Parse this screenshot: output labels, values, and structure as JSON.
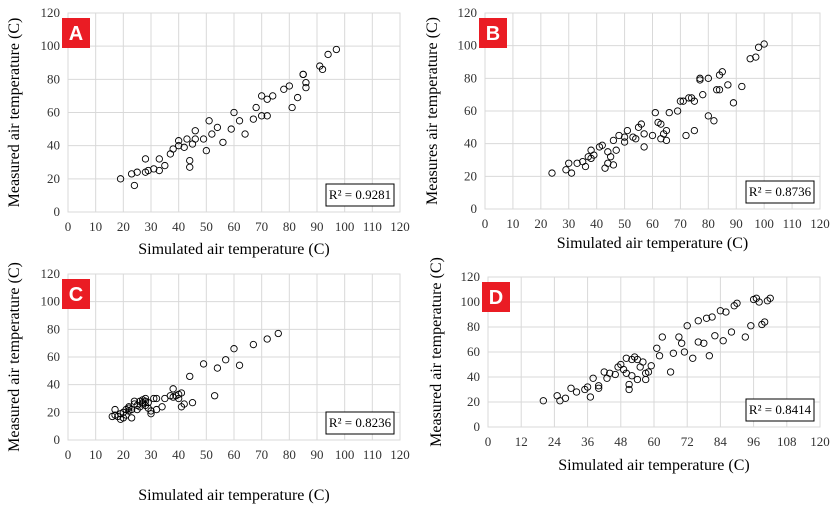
{
  "chart_data": [
    {
      "type": "scatter",
      "panel_label": "A",
      "xlabel": "Simulated air temperature (C)",
      "ylabel": "Measured air temperature (C)",
      "xlim": [
        0,
        120
      ],
      "ylim": [
        0,
        120
      ],
      "xticks": [
        "0",
        "10",
        "20",
        "30",
        "40",
        "50",
        "60",
        "70",
        "80",
        "90",
        "100",
        "110",
        "120"
      ],
      "yticks": [
        "0",
        "20",
        "40",
        "60",
        "80",
        "100",
        "120"
      ],
      "r2": "R² = 0.9281",
      "r2_position": "bottom-right",
      "grid": true,
      "points": [
        [
          19,
          20
        ],
        [
          23,
          23
        ],
        [
          24,
          16
        ],
        [
          25,
          24
        ],
        [
          28,
          24
        ],
        [
          28,
          32
        ],
        [
          29,
          25
        ],
        [
          31,
          26
        ],
        [
          33,
          32
        ],
        [
          33,
          25
        ],
        [
          35,
          28
        ],
        [
          37,
          35
        ],
        [
          38,
          38
        ],
        [
          40,
          40
        ],
        [
          40,
          43
        ],
        [
          42,
          39
        ],
        [
          43,
          44
        ],
        [
          44,
          27
        ],
        [
          44,
          31
        ],
        [
          45,
          41
        ],
        [
          46,
          44
        ],
        [
          46,
          49
        ],
        [
          49,
          44
        ],
        [
          50,
          37
        ],
        [
          51,
          55
        ],
        [
          52,
          47
        ],
        [
          54,
          51
        ],
        [
          56,
          42
        ],
        [
          59,
          50
        ],
        [
          60,
          60
        ],
        [
          62,
          55
        ],
        [
          64,
          47
        ],
        [
          67,
          56
        ],
        [
          68,
          63
        ],
        [
          70,
          58
        ],
        [
          70,
          70
        ],
        [
          72,
          58
        ],
        [
          72,
          68
        ],
        [
          74,
          70
        ],
        [
          78,
          74
        ],
        [
          80,
          76
        ],
        [
          81,
          63
        ],
        [
          83,
          69
        ],
        [
          85,
          83
        ],
        [
          85,
          83
        ],
        [
          86,
          75
        ],
        [
          86,
          78
        ],
        [
          91,
          88
        ],
        [
          92,
          86
        ],
        [
          94,
          95
        ],
        [
          97,
          98
        ]
      ]
    },
    {
      "type": "scatter",
      "panel_label": "B",
      "xlabel": "Simulated air temperature (C)",
      "ylabel": "Measures air temperature (C)",
      "xlim": [
        0,
        120
      ],
      "ylim": [
        0,
        120
      ],
      "xticks": [
        "0",
        "10",
        "20",
        "30",
        "40",
        "50",
        "60",
        "70",
        "80",
        "90",
        "100",
        "110",
        "120"
      ],
      "yticks": [
        "0",
        "20",
        "40",
        "60",
        "80",
        "100",
        "120"
      ],
      "r2": "R² = 0.8736",
      "r2_position": "bottom-right",
      "grid": true,
      "points": [
        [
          24,
          22
        ],
        [
          29,
          24
        ],
        [
          30,
          28
        ],
        [
          31,
          22
        ],
        [
          33,
          28
        ],
        [
          35,
          29
        ],
        [
          36,
          26
        ],
        [
          37,
          32
        ],
        [
          38,
          36
        ],
        [
          38,
          31
        ],
        [
          39,
          33
        ],
        [
          41,
          38
        ],
        [
          42,
          39
        ],
        [
          43,
          25
        ],
        [
          44,
          28
        ],
        [
          44,
          35
        ],
        [
          45,
          32
        ],
        [
          46,
          27
        ],
        [
          46,
          42
        ],
        [
          47,
          36
        ],
        [
          48,
          45
        ],
        [
          50,
          41
        ],
        [
          50,
          44
        ],
        [
          51,
          48
        ],
        [
          53,
          44
        ],
        [
          54,
          43
        ],
        [
          55,
          50
        ],
        [
          56,
          52
        ],
        [
          57,
          46
        ],
        [
          57,
          38
        ],
        [
          60,
          45
        ],
        [
          61,
          59
        ],
        [
          62,
          53
        ],
        [
          63,
          52
        ],
        [
          63,
          43
        ],
        [
          64,
          46
        ],
        [
          65,
          42
        ],
        [
          65,
          48
        ],
        [
          66,
          59
        ],
        [
          69,
          60
        ],
        [
          70,
          66
        ],
        [
          71,
          66
        ],
        [
          72,
          45
        ],
        [
          73,
          68
        ],
        [
          74,
          68
        ],
        [
          75,
          66
        ],
        [
          75,
          48
        ],
        [
          77,
          79
        ],
        [
          77,
          80
        ],
        [
          78,
          70
        ],
        [
          80,
          57
        ],
        [
          80,
          80
        ],
        [
          82,
          54
        ],
        [
          83,
          73
        ],
        [
          84,
          73
        ],
        [
          84,
          82
        ],
        [
          85,
          84
        ],
        [
          87,
          76
        ],
        [
          89,
          65
        ],
        [
          92,
          75
        ],
        [
          95,
          92
        ],
        [
          97,
          93
        ],
        [
          98,
          99
        ],
        [
          100,
          101
        ]
      ]
    },
    {
      "type": "scatter",
      "panel_label": "C",
      "xlabel": "Simulated air temperature (C)",
      "ylabel": "Measured air temperature (C)",
      "xlim": [
        0,
        120
      ],
      "ylim": [
        0,
        120
      ],
      "xticks": [
        "0",
        "10",
        "20",
        "30",
        "40",
        "50",
        "60",
        "70",
        "80",
        "90",
        "100",
        "110",
        "120"
      ],
      "yticks": [
        "0",
        "20",
        "40",
        "60",
        "80",
        "100",
        "120"
      ],
      "r2": "R² = 0.8236",
      "r2_position": "bottom-right",
      "grid": true,
      "points": [
        [
          16,
          17
        ],
        [
          17,
          22
        ],
        [
          17,
          18
        ],
        [
          18,
          17
        ],
        [
          19,
          15
        ],
        [
          19,
          19
        ],
        [
          20,
          20
        ],
        [
          20,
          16
        ],
        [
          21,
          22
        ],
        [
          21,
          18
        ],
        [
          22,
          21
        ],
        [
          22,
          23
        ],
        [
          22,
          24
        ],
        [
          23,
          16
        ],
        [
          23,
          22
        ],
        [
          24,
          26
        ],
        [
          24,
          28
        ],
        [
          25,
          25
        ],
        [
          25,
          22
        ],
        [
          26,
          24
        ],
        [
          26,
          28
        ],
        [
          27,
          27
        ],
        [
          27,
          29
        ],
        [
          27,
          26
        ],
        [
          28,
          30
        ],
        [
          28,
          28
        ],
        [
          28,
          25
        ],
        [
          29,
          27
        ],
        [
          29,
          23
        ],
        [
          30,
          21
        ],
        [
          30,
          19
        ],
        [
          31,
          30
        ],
        [
          32,
          22
        ],
        [
          32,
          30
        ],
        [
          34,
          24
        ],
        [
          35,
          30
        ],
        [
          37,
          32
        ],
        [
          38,
          31
        ],
        [
          38,
          37
        ],
        [
          39,
          32
        ],
        [
          40,
          30
        ],
        [
          40,
          33
        ],
        [
          41,
          24
        ],
        [
          41,
          34
        ],
        [
          42,
          26
        ],
        [
          44,
          46
        ],
        [
          45,
          27
        ],
        [
          49,
          55
        ],
        [
          53,
          32
        ],
        [
          54,
          52
        ],
        [
          57,
          58
        ],
        [
          60,
          66
        ],
        [
          62,
          54
        ],
        [
          67,
          69
        ],
        [
          72,
          73
        ],
        [
          76,
          77
        ]
      ]
    },
    {
      "type": "scatter",
      "panel_label": "D",
      "xlabel": "Simulated air temperature (C)",
      "ylabel": "Measured air temperature (C)",
      "xlim": [
        0,
        120
      ],
      "ylim": [
        0,
        120
      ],
      "xticks": [
        "0",
        "12",
        "24",
        "36",
        "48",
        "60",
        "72",
        "84",
        "96",
        "108",
        "120"
      ],
      "yticks": [
        "0",
        "20",
        "40",
        "60",
        "80",
        "100",
        "120"
      ],
      "r2": "R² = 0.8414",
      "r2_position": "bottom-right",
      "grid": true,
      "points": [
        [
          20,
          21
        ],
        [
          25,
          25
        ],
        [
          26,
          21
        ],
        [
          28,
          23
        ],
        [
          30,
          31
        ],
        [
          32,
          28
        ],
        [
          35,
          30
        ],
        [
          36,
          32
        ],
        [
          37,
          24
        ],
        [
          38,
          39
        ],
        [
          40,
          31
        ],
        [
          40,
          33
        ],
        [
          42,
          44
        ],
        [
          43,
          39
        ],
        [
          44,
          43
        ],
        [
          46,
          42
        ],
        [
          47,
          48
        ],
        [
          48,
          50
        ],
        [
          49,
          46
        ],
        [
          50,
          55
        ],
        [
          50,
          43
        ],
        [
          51,
          30
        ],
        [
          51,
          34
        ],
        [
          52,
          41
        ],
        [
          52,
          54
        ],
        [
          53,
          56
        ],
        [
          54,
          54
        ],
        [
          54,
          38
        ],
        [
          55,
          48
        ],
        [
          56,
          52
        ],
        [
          57,
          43
        ],
        [
          57,
          38
        ],
        [
          58,
          44
        ],
        [
          59,
          49
        ],
        [
          61,
          63
        ],
        [
          62,
          57
        ],
        [
          63,
          72
        ],
        [
          66,
          44
        ],
        [
          67,
          59
        ],
        [
          69,
          72
        ],
        [
          70,
          67
        ],
        [
          71,
          60
        ],
        [
          72,
          81
        ],
        [
          74,
          55
        ],
        [
          76,
          68
        ],
        [
          76,
          85
        ],
        [
          78,
          67
        ],
        [
          79,
          87
        ],
        [
          80,
          57
        ],
        [
          81,
          88
        ],
        [
          82,
          73
        ],
        [
          84,
          93
        ],
        [
          85,
          69
        ],
        [
          86,
          92
        ],
        [
          88,
          76
        ],
        [
          89,
          97
        ],
        [
          90,
          99
        ],
        [
          93,
          72
        ],
        [
          95,
          81
        ],
        [
          96,
          102
        ],
        [
          97,
          103
        ],
        [
          98,
          100
        ],
        [
          99,
          82
        ],
        [
          100,
          84
        ],
        [
          101,
          101
        ],
        [
          102,
          103
        ]
      ]
    }
  ],
  "colors": {
    "label_badge": "#ea1c24",
    "grid": "#d9d9d9",
    "marker": "#000000"
  }
}
